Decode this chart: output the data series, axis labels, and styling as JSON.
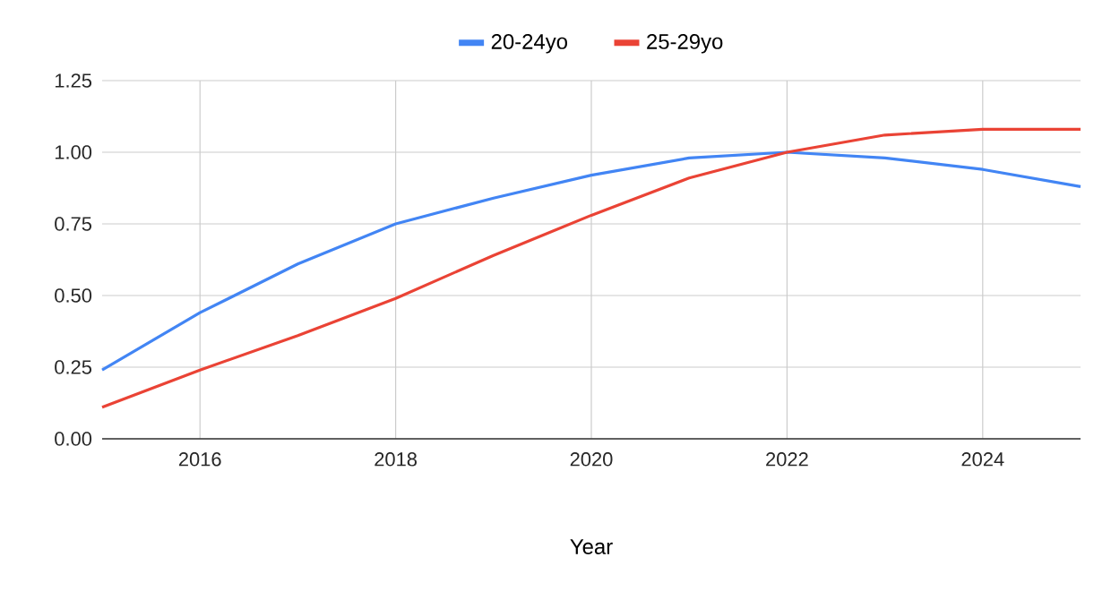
{
  "chart_data": {
    "type": "line",
    "xlabel": "Year",
    "x": [
      2015,
      2016,
      2017,
      2018,
      2019,
      2020,
      2021,
      2022,
      2023,
      2024,
      2025
    ],
    "series": [
      {
        "name": "20-24yo",
        "color": "#4285f4",
        "values": [
          0.24,
          0.44,
          0.61,
          0.75,
          0.84,
          0.92,
          0.98,
          1.0,
          0.98,
          0.94,
          0.88
        ]
      },
      {
        "name": "25-29yo",
        "color": "#ea4335",
        "values": [
          0.11,
          0.24,
          0.36,
          0.49,
          0.64,
          0.78,
          0.91,
          1.0,
          1.06,
          1.08,
          1.08
        ]
      }
    ],
    "xlim": [
      2015,
      2025
    ],
    "xticks": [
      2016,
      2018,
      2020,
      2022,
      2024
    ],
    "ylim": [
      0,
      1.25
    ],
    "yticks": [
      {
        "value": 0,
        "label": "0.00"
      },
      {
        "value": 0.25,
        "label": "0.25"
      },
      {
        "value": 0.5,
        "label": "0.50"
      },
      {
        "value": 0.75,
        "label": "0.75"
      },
      {
        "value": 1.0,
        "label": "1.00"
      },
      {
        "value": 1.25,
        "label": "1.25"
      }
    ],
    "grid": true,
    "legend": "top",
    "marker": "none",
    "line_style": "solid"
  }
}
